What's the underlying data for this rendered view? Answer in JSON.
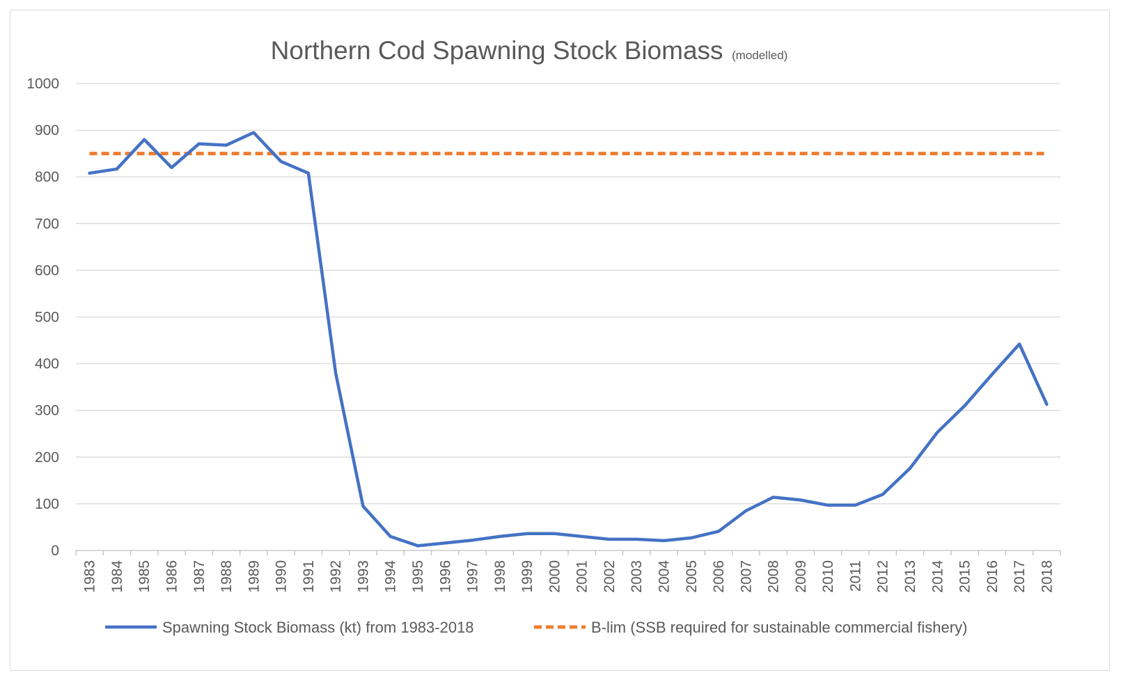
{
  "chart_data": {
    "type": "line",
    "title": "Northern Cod Spawning Stock Biomass",
    "subtitle": "(modelled)",
    "xlabel": "",
    "ylabel": "",
    "ylim": [
      0,
      1000
    ],
    "yticks": [
      "0",
      "100",
      "200",
      "300",
      "400",
      "500",
      "600",
      "700",
      "800",
      "900",
      "1000"
    ],
    "grid": true,
    "legend_position": "bottom",
    "categories": [
      "1983",
      "1984",
      "1985",
      "1986",
      "1987",
      "1988",
      "1989",
      "1990",
      "1991",
      "1992",
      "1993",
      "1994",
      "1995",
      "1996",
      "1997",
      "1998",
      "1999",
      "2000",
      "2001",
      "2002",
      "2003",
      "2004",
      "2005",
      "2006",
      "2007",
      "2008",
      "2009",
      "2010",
      "2011",
      "2012",
      "2013",
      "2014",
      "2015",
      "2016",
      "2017",
      "2018"
    ],
    "series": [
      {
        "name": "Spawning Stock Biomass (kt) from 1983-2018",
        "color": "#4472C4",
        "style": "solid",
        "values": [
          808,
          817,
          880,
          820,
          871,
          868,
          895,
          833,
          808,
          380,
          95,
          30,
          10,
          16,
          22,
          30,
          36,
          36,
          30,
          24,
          24,
          21,
          27,
          41,
          85,
          114,
          108,
          97,
          97,
          120,
          176,
          253,
          310,
          377,
          442,
          313
        ]
      },
      {
        "name": "B-lim (SSB required for sustainable commercial fishery)",
        "color": "#ED7D31",
        "style": "dashed",
        "values": [
          850,
          850,
          850,
          850,
          850,
          850,
          850,
          850,
          850,
          850,
          850,
          850,
          850,
          850,
          850,
          850,
          850,
          850,
          850,
          850,
          850,
          850,
          850,
          850,
          850,
          850,
          850,
          850,
          850,
          850,
          850,
          850,
          850,
          850,
          850,
          850
        ]
      }
    ]
  }
}
